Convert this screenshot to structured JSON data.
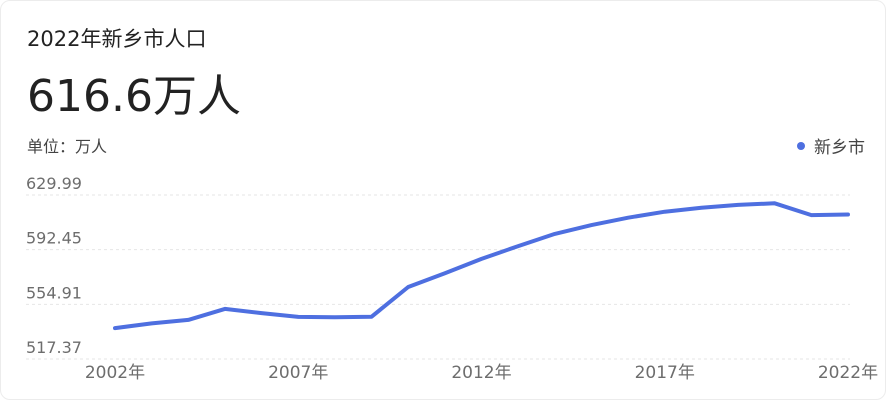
{
  "header": {
    "title": "2022年新乡市人口",
    "value": "616.6万人",
    "unit": "单位：万人"
  },
  "legend": {
    "label": "新乡市",
    "color": "#4e6fe0"
  },
  "chart_data": {
    "type": "line",
    "title": "2022年新乡市人口",
    "ylabel": "单位：万人",
    "xlabel": "",
    "y_ticks": [
      "629.99",
      "592.45",
      "554.91",
      "517.37"
    ],
    "x_ticks": [
      "2002年",
      "2007年",
      "2012年",
      "2017年",
      "2022年"
    ],
    "ylim": [
      517.37,
      629.99
    ],
    "xlim": [
      2002,
      2022
    ],
    "grid": true,
    "legend_position": "top-right",
    "series": [
      {
        "name": "新乡市",
        "color": "#4e6fe0",
        "x": [
          2002,
          2003,
          2004,
          2005,
          2006,
          2007,
          2008,
          2009,
          2010,
          2011,
          2012,
          2013,
          2014,
          2015,
          2016,
          2017,
          2018,
          2019,
          2020,
          2021,
          2022
        ],
        "values": [
          538.6,
          541.8,
          544.2,
          551.8,
          548.9,
          546.3,
          546.0,
          546.4,
          566.8,
          576.2,
          586.1,
          594.9,
          603.3,
          609.3,
          614.4,
          618.5,
          621.3,
          623.2,
          624.3,
          616.2,
          616.6
        ]
      }
    ]
  }
}
